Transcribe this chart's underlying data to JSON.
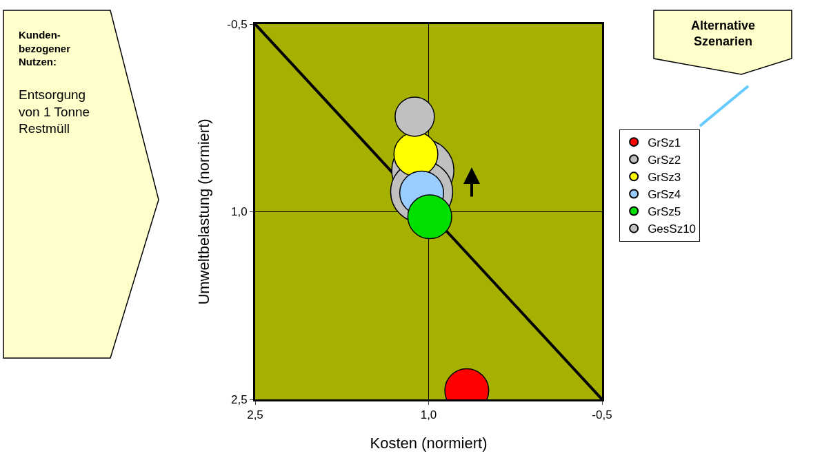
{
  "chart_data": {
    "type": "bubble",
    "xlabel": "Kosten (normiert)",
    "ylabel": "Umweltbelastung (normiert)",
    "xlim": [
      2.5,
      -0.5
    ],
    "xticks": [
      {
        "value": 2.5,
        "label": "2,5"
      },
      {
        "value": 1.0,
        "label": "1,0"
      },
      {
        "value": -0.5,
        "label": "-0,5"
      }
    ],
    "ylim": [
      2.5,
      -0.5
    ],
    "yticks": [
      {
        "value": -0.5,
        "label": "-0,5"
      },
      {
        "value": 1.0,
        "label": "1,0"
      },
      {
        "value": 2.5,
        "label": "2,5"
      }
    ],
    "grid": true,
    "legend": "right",
    "series": [
      {
        "type": "line",
        "color": "#000000",
        "x": [
          2.5,
          -0.5
        ],
        "values": [
          -0.5,
          2.5
        ]
      },
      {
        "name": "GrSz1",
        "color": "#ff0000",
        "x": [
          0.67
        ],
        "values": [
          2.43
        ],
        "sizes": [
          0.5
        ]
      },
      {
        "name": "GrSz2",
        "color": "#c0c0c0",
        "x": [
          1.05,
          1.06
        ],
        "values": [
          0.67,
          0.84
        ],
        "sizes": [
          1,
          1
        ]
      },
      {
        "name": "GrSz3",
        "color": "#ffff00",
        "x": [
          1.11
        ],
        "values": [
          0.54
        ],
        "sizes": [
          0.5
        ]
      },
      {
        "name": "GrSz4",
        "color": "#99ccff",
        "x": [
          1.06
        ],
        "values": [
          0.85
        ],
        "sizes": [
          0.5
        ]
      },
      {
        "name": "GrSz5",
        "color": "#00e000",
        "x": [
          0.99
        ],
        "values": [
          1.04
        ],
        "sizes": [
          0.5
        ]
      },
      {
        "name": "GesSz10",
        "color": "#c0c0c0",
        "x": [
          1.12
        ],
        "values": [
          0.24
        ],
        "sizes": [
          0.4
        ]
      }
    ],
    "annotations": [
      "Kunden-\nbezogener\nNutzen:",
      "Entsorgung\nvon 1 Tonne\nRestmüll",
      "Alternative\nSzenarien"
    ]
  }
}
